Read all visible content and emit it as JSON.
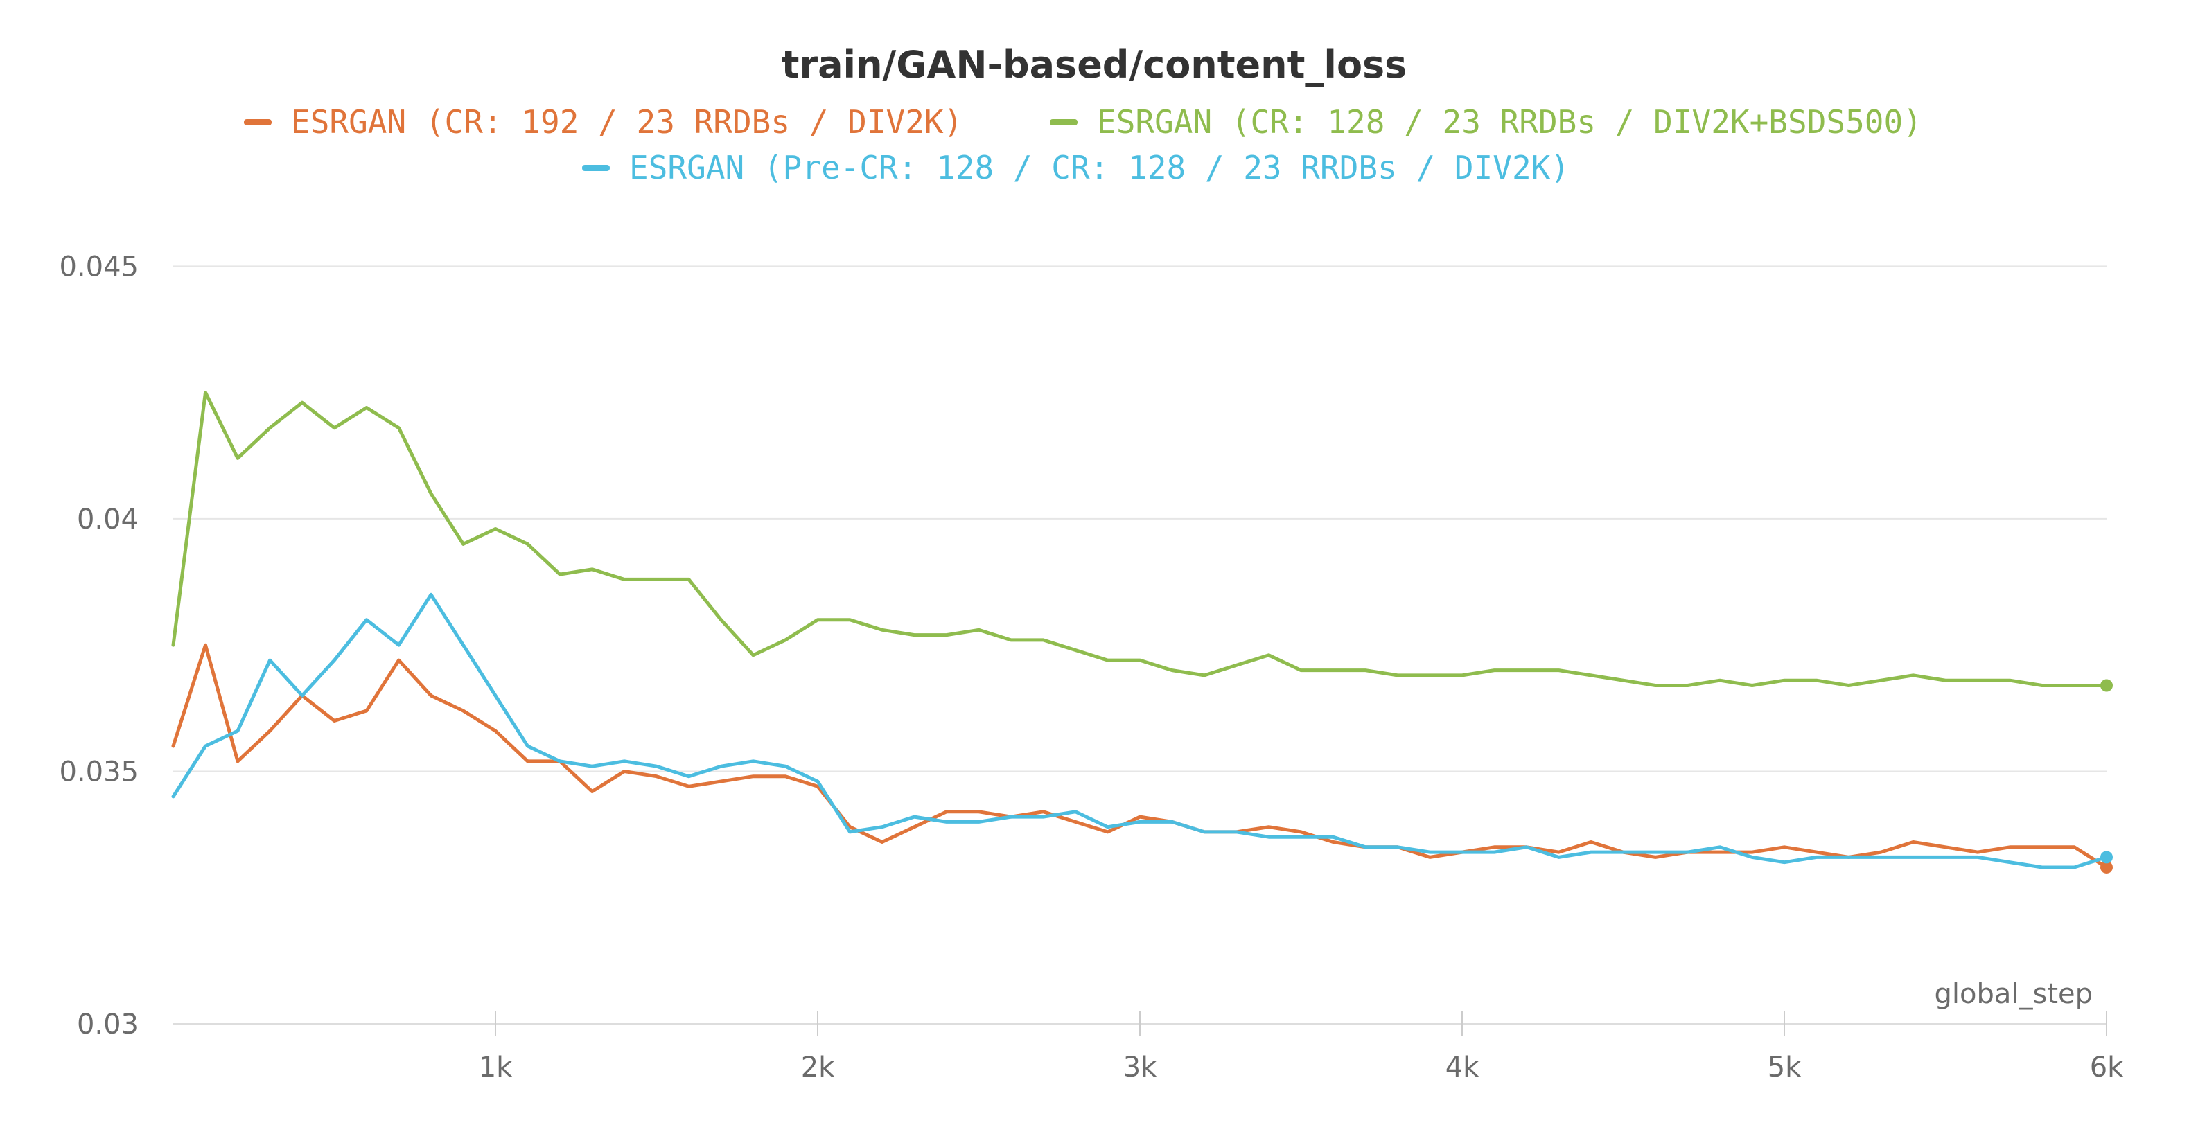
{
  "chart_data": {
    "type": "line",
    "title": "train/GAN-based/content_loss",
    "xlabel": "global_step",
    "ylabel": "",
    "xlim": [
      0,
      6000
    ],
    "ylim": [
      0.03,
      0.0465
    ],
    "x_ticks": [
      {
        "value": 1000,
        "label": "1k"
      },
      {
        "value": 2000,
        "label": "2k"
      },
      {
        "value": 3000,
        "label": "3k"
      },
      {
        "value": 4000,
        "label": "4k"
      },
      {
        "value": 5000,
        "label": "5k"
      },
      {
        "value": 6000,
        "label": "6k"
      }
    ],
    "y_ticks": [
      {
        "value": 0.03,
        "label": "0.03"
      },
      {
        "value": 0.035,
        "label": "0.035"
      },
      {
        "value": 0.04,
        "label": "0.04"
      },
      {
        "value": 0.045,
        "label": "0.045"
      }
    ],
    "grid": true,
    "legend_position": "top-center",
    "series": [
      {
        "name": "ESRGAN (CR: 192 / 23 RRDBs / DIV2K)",
        "color": "#e0743a",
        "x": [
          0,
          100,
          200,
          300,
          400,
          500,
          600,
          700,
          800,
          900,
          1000,
          1100,
          1200,
          1300,
          1400,
          1500,
          1600,
          1700,
          1800,
          1900,
          2000,
          2100,
          2200,
          2300,
          2400,
          2500,
          2600,
          2700,
          2800,
          2900,
          3000,
          3100,
          3200,
          3300,
          3400,
          3500,
          3600,
          3700,
          3800,
          3900,
          4000,
          4100,
          4200,
          4300,
          4400,
          4500,
          4600,
          4700,
          4800,
          4900,
          5000,
          5100,
          5200,
          5300,
          5400,
          5500,
          5600,
          5700,
          5800,
          5900,
          6000
        ],
        "y": [
          0.0355,
          0.0375,
          0.0352,
          0.0358,
          0.0365,
          0.036,
          0.0362,
          0.0372,
          0.0365,
          0.0362,
          0.0358,
          0.0352,
          0.0352,
          0.0346,
          0.035,
          0.0349,
          0.0347,
          0.0348,
          0.0349,
          0.0349,
          0.0347,
          0.0339,
          0.0336,
          0.0339,
          0.0342,
          0.0342,
          0.0341,
          0.0342,
          0.034,
          0.0338,
          0.0341,
          0.034,
          0.0338,
          0.0338,
          0.0339,
          0.0338,
          0.0336,
          0.0335,
          0.0335,
          0.0333,
          0.0334,
          0.0335,
          0.0335,
          0.0334,
          0.0336,
          0.0334,
          0.0333,
          0.0334,
          0.0334,
          0.0334,
          0.0335,
          0.0334,
          0.0333,
          0.0334,
          0.0336,
          0.0335,
          0.0334,
          0.0335,
          0.0335,
          0.0335,
          0.0331
        ]
      },
      {
        "name": "ESRGAN (CR: 128 / 23 RRDBs / DIV2K+BSDS500)",
        "color": "#8fbc4e",
        "x": [
          0,
          100,
          200,
          300,
          400,
          500,
          600,
          700,
          800,
          900,
          1000,
          1100,
          1200,
          1300,
          1400,
          1500,
          1600,
          1700,
          1800,
          1900,
          2000,
          2100,
          2200,
          2300,
          2400,
          2500,
          2600,
          2700,
          2800,
          2900,
          3000,
          3100,
          3200,
          3300,
          3400,
          3500,
          3600,
          3700,
          3800,
          3900,
          4000,
          4100,
          4200,
          4300,
          4400,
          4500,
          4600,
          4700,
          4800,
          4900,
          5000,
          5100,
          5200,
          5300,
          5400,
          5500,
          5600,
          5700,
          5800,
          5900,
          6000
        ],
        "y": [
          0.0375,
          0.0425,
          0.0412,
          0.0418,
          0.0423,
          0.0418,
          0.0422,
          0.0418,
          0.0405,
          0.0395,
          0.0398,
          0.0395,
          0.0389,
          0.039,
          0.0388,
          0.0388,
          0.0388,
          0.038,
          0.0373,
          0.0376,
          0.038,
          0.038,
          0.0378,
          0.0377,
          0.0377,
          0.0378,
          0.0376,
          0.0376,
          0.0374,
          0.0372,
          0.0372,
          0.037,
          0.0369,
          0.0371,
          0.0373,
          0.037,
          0.037,
          0.037,
          0.0369,
          0.0369,
          0.0369,
          0.037,
          0.037,
          0.037,
          0.0369,
          0.0368,
          0.0367,
          0.0367,
          0.0368,
          0.0367,
          0.0368,
          0.0368,
          0.0367,
          0.0368,
          0.0369,
          0.0368,
          0.0368,
          0.0368,
          0.0367,
          0.0367,
          0.0367
        ]
      },
      {
        "name": "ESRGAN (Pre-CR: 128 / CR: 128 / 23 RRDBs / DIV2K)",
        "color": "#4cbde0",
        "x": [
          0,
          100,
          200,
          300,
          400,
          500,
          600,
          700,
          800,
          900,
          1000,
          1100,
          1200,
          1300,
          1400,
          1500,
          1600,
          1700,
          1800,
          1900,
          2000,
          2100,
          2200,
          2300,
          2400,
          2500,
          2600,
          2700,
          2800,
          2900,
          3000,
          3100,
          3200,
          3300,
          3400,
          3500,
          3600,
          3700,
          3800,
          3900,
          4000,
          4100,
          4200,
          4300,
          4400,
          4500,
          4600,
          4700,
          4800,
          4900,
          5000,
          5100,
          5200,
          5300,
          5400,
          5500,
          5600,
          5700,
          5800,
          5900,
          6000
        ],
        "y": [
          0.0345,
          0.0355,
          0.0358,
          0.0372,
          0.0365,
          0.0372,
          0.038,
          0.0375,
          0.0385,
          0.0375,
          0.0365,
          0.0355,
          0.0352,
          0.0351,
          0.0352,
          0.0351,
          0.0349,
          0.0351,
          0.0352,
          0.0351,
          0.0348,
          0.0338,
          0.0339,
          0.0341,
          0.034,
          0.034,
          0.0341,
          0.0341,
          0.0342,
          0.0339,
          0.034,
          0.034,
          0.0338,
          0.0338,
          0.0337,
          0.0337,
          0.0337,
          0.0335,
          0.0335,
          0.0334,
          0.0334,
          0.0334,
          0.0335,
          0.0333,
          0.0334,
          0.0334,
          0.0334,
          0.0334,
          0.0335,
          0.0333,
          0.0332,
          0.0333,
          0.0333,
          0.0333,
          0.0333,
          0.0333,
          0.0333,
          0.0332,
          0.0331,
          0.0331,
          0.0333
        ]
      }
    ]
  }
}
